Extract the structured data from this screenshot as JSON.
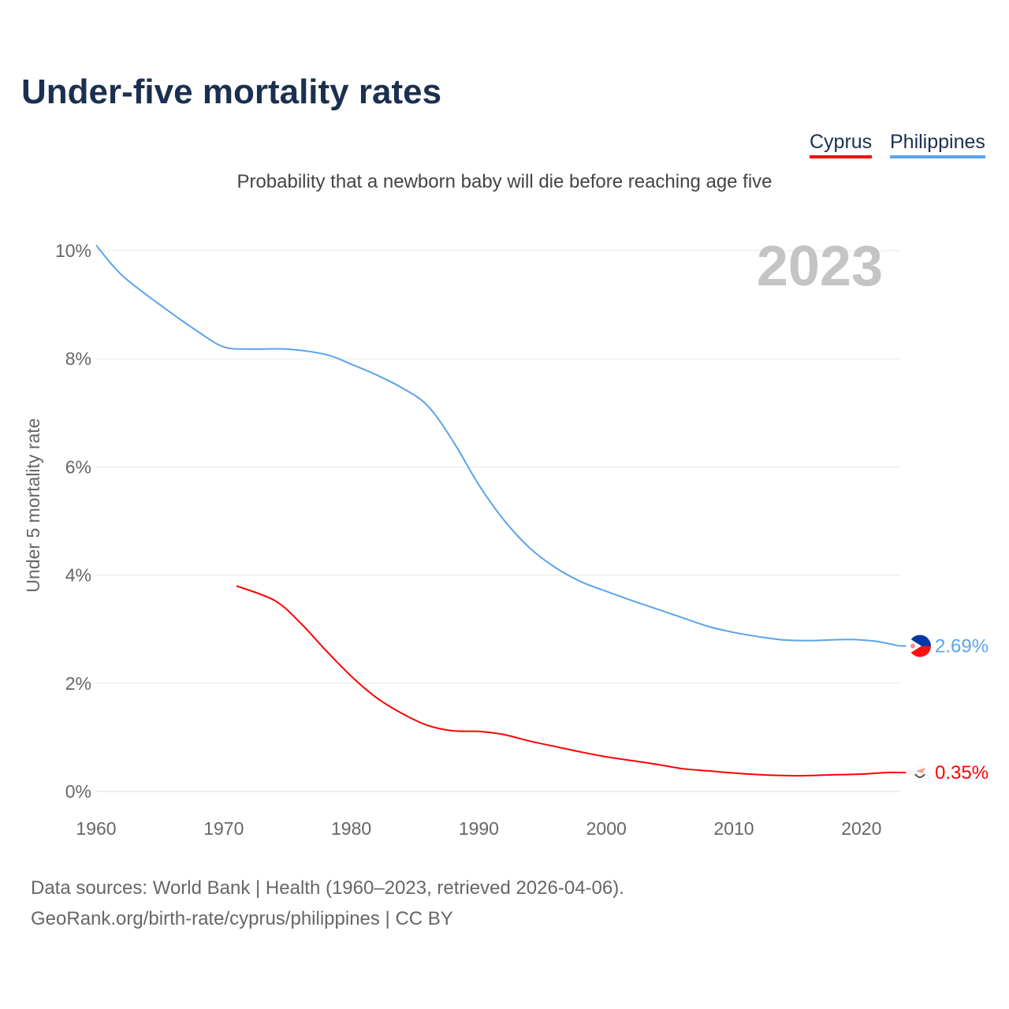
{
  "title": "Under-five mortality rates",
  "subtitle": "Probability that a newborn baby will die before reaching age five",
  "legend": [
    {
      "label": "Cyprus",
      "color": "#ff0000"
    },
    {
      "label": "Philippines",
      "color": "#5ba3ec"
    }
  ],
  "source_line1": "Data sources: World Bank | Health (1960–2023, retrieved 2026-04-06).",
  "source_line2": "GeoRank.org/birth-rate/cyprus/philippines | CC BY",
  "chart_data": {
    "type": "line",
    "title": "Under-five mortality rates",
    "ylabel": "Under 5 mortality rate",
    "xlabel": "",
    "year_label": "2023",
    "xlim": [
      1960,
      2023
    ],
    "ylim": [
      0,
      10
    ],
    "xticks": [
      1960,
      1970,
      1980,
      1990,
      2000,
      2010,
      2020
    ],
    "yticks": [
      0,
      2,
      4,
      6,
      8,
      10
    ],
    "ytick_labels": [
      "0%",
      "2%",
      "4%",
      "6%",
      "8%",
      "10%"
    ],
    "grid": true,
    "series": [
      {
        "name": "Philippines",
        "color": "#5ba3ec",
        "end_label": "2.69%",
        "flag": "philippines-flag",
        "x": [
          1960,
          1962,
          1965,
          1968,
          1970,
          1972,
          1975,
          1978,
          1980,
          1982,
          1984,
          1986,
          1988,
          1990,
          1992,
          1994,
          1996,
          1998,
          2000,
          2002,
          2004,
          2006,
          2008,
          2010,
          2012,
          2014,
          2016,
          2019,
          2021,
          2023
        ],
        "y": [
          10.1,
          9.55,
          9.0,
          8.5,
          8.22,
          8.18,
          8.18,
          8.08,
          7.9,
          7.7,
          7.46,
          7.13,
          6.47,
          5.67,
          5.01,
          4.5,
          4.14,
          3.88,
          3.7,
          3.53,
          3.37,
          3.21,
          3.05,
          2.94,
          2.86,
          2.8,
          2.79,
          2.81,
          2.78,
          2.69
        ]
      },
      {
        "name": "Cyprus",
        "color": "#ff0000",
        "end_label": "0.35%",
        "flag": "cyprus-flag",
        "x": [
          1971,
          1974,
          1976,
          1978,
          1980,
          1982,
          1984,
          1986,
          1988,
          1990,
          1992,
          1994,
          1996,
          1998,
          2000,
          2002,
          2004,
          2006,
          2008,
          2010,
          2012,
          2015,
          2018,
          2020,
          2022,
          2023
        ],
        "y": [
          3.8,
          3.53,
          3.12,
          2.61,
          2.13,
          1.73,
          1.44,
          1.22,
          1.12,
          1.11,
          1.05,
          0.93,
          0.83,
          0.73,
          0.64,
          0.57,
          0.5,
          0.42,
          0.38,
          0.34,
          0.31,
          0.29,
          0.31,
          0.32,
          0.35,
          0.35
        ]
      }
    ]
  }
}
